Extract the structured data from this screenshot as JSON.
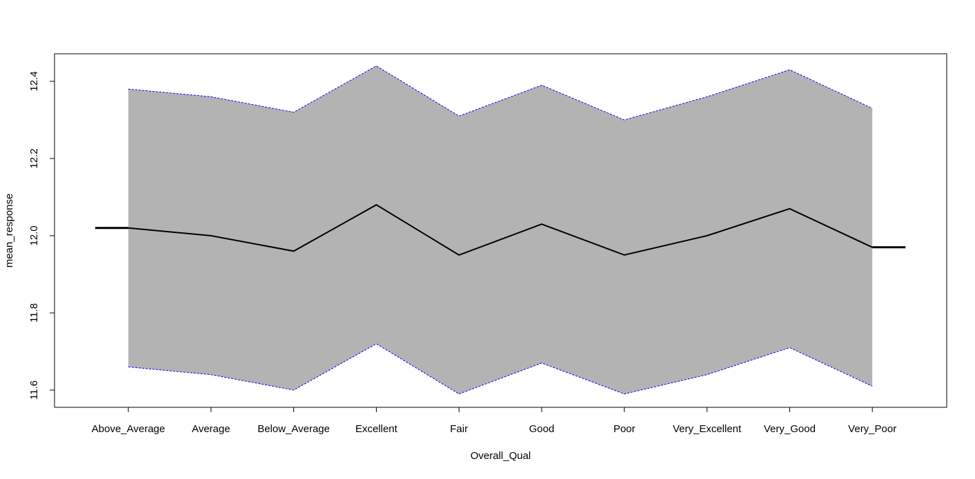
{
  "chart_data": {
    "type": "line",
    "title": "",
    "xlabel": "Overall_Qual",
    "ylabel": "mean_response",
    "categories": [
      "Above_Average",
      "Average",
      "Below_Average",
      "Excellent",
      "Fair",
      "Good",
      "Poor",
      "Very_Excellent",
      "Very_Good",
      "Very_Poor"
    ],
    "series": [
      {
        "role": "mean",
        "values": [
          12.02,
          12.0,
          11.96,
          12.08,
          11.95,
          12.03,
          11.95,
          12.0,
          12.07,
          11.97
        ]
      },
      {
        "role": "upper",
        "values": [
          12.38,
          12.36,
          12.32,
          12.44,
          12.31,
          12.39,
          12.3,
          12.36,
          12.43,
          12.33
        ]
      },
      {
        "role": "lower",
        "values": [
          11.66,
          11.64,
          11.6,
          11.72,
          11.59,
          11.67,
          11.59,
          11.64,
          11.71,
          11.61
        ]
      }
    ],
    "ylim": [
      11.55,
      12.46
    ],
    "yticks": [
      "11.6",
      "11.8",
      "12.0",
      "12.2",
      "12.4"
    ],
    "band_fill": "#b3b3b3",
    "band_border_color": "#0000ff",
    "line_color": "#000000",
    "grid": false,
    "legend": "none"
  }
}
